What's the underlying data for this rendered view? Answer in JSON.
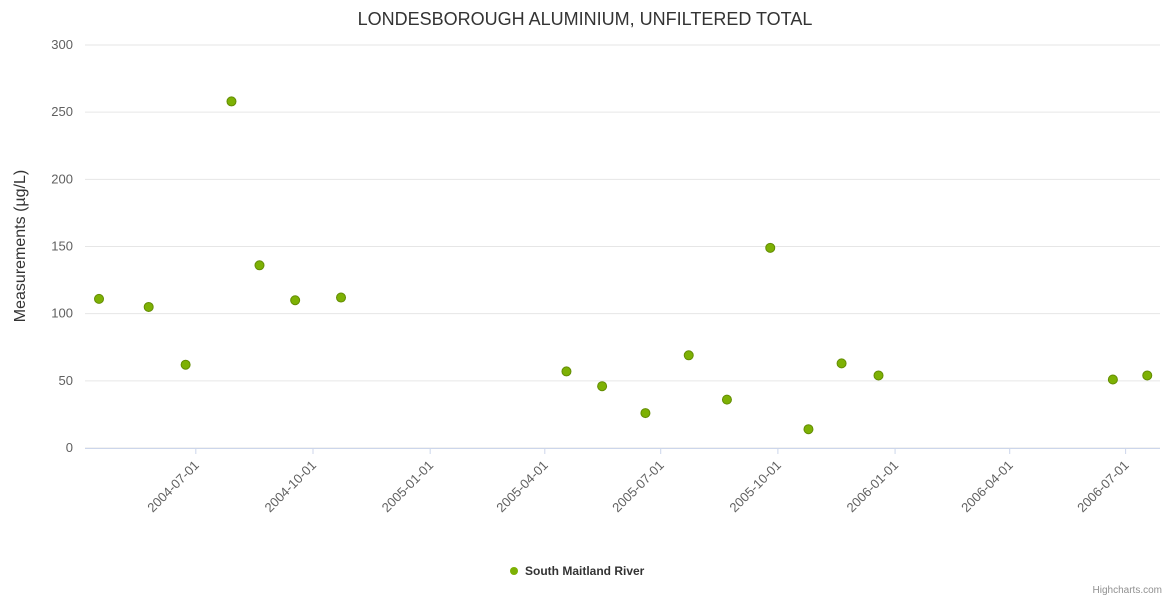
{
  "title": "LONDESBOROUGH ALUMINIUM, UNFILTERED TOTAL",
  "credits": "Highcharts.com",
  "legend": {
    "label": "South Maitland River",
    "marker_color": "#7db104"
  },
  "colors": {
    "series": "#7db104",
    "series_stroke": "#638c03",
    "gridline": "#e6e6e6",
    "axis": "#ccd6eb",
    "tick_text": "#606060",
    "title_text": "#333333"
  },
  "chart_data": {
    "type": "scatter",
    "title": "LONDESBOROUGH ALUMINIUM, UNFILTERED TOTAL",
    "xlabel": "",
    "ylabel": "Measurements (µg/L)",
    "ylim": [
      0,
      300
    ],
    "y_ticks": [
      0,
      50,
      100,
      150,
      200,
      250,
      300
    ],
    "xlim": [
      "2004-04-05",
      "2006-07-28"
    ],
    "x_ticks": [
      "2004-07-01",
      "2004-10-01",
      "2005-01-01",
      "2005-04-01",
      "2005-07-01",
      "2005-10-01",
      "2006-01-01",
      "2006-04-01",
      "2006-07-01"
    ],
    "grid": "horizontal",
    "legend_position": "bottom-center",
    "series": [
      {
        "name": "South Maitland River",
        "color": "#7db104",
        "points": [
          [
            "2004-04-16",
            111
          ],
          [
            "2004-05-25",
            105
          ],
          [
            "2004-06-23",
            62
          ],
          [
            "2004-07-29",
            258
          ],
          [
            "2004-08-20",
            136
          ],
          [
            "2004-09-17",
            110
          ],
          [
            "2004-10-23",
            112
          ],
          [
            "2005-04-18",
            57
          ],
          [
            "2005-05-16",
            46
          ],
          [
            "2005-06-19",
            26
          ],
          [
            "2005-07-23",
            69
          ],
          [
            "2005-08-22",
            36
          ],
          [
            "2005-09-25",
            149
          ],
          [
            "2005-10-25",
            14
          ],
          [
            "2005-11-20",
            63
          ],
          [
            "2005-12-19",
            54
          ],
          [
            "2006-06-21",
            51
          ],
          [
            "2006-07-18",
            54
          ]
        ]
      }
    ]
  }
}
